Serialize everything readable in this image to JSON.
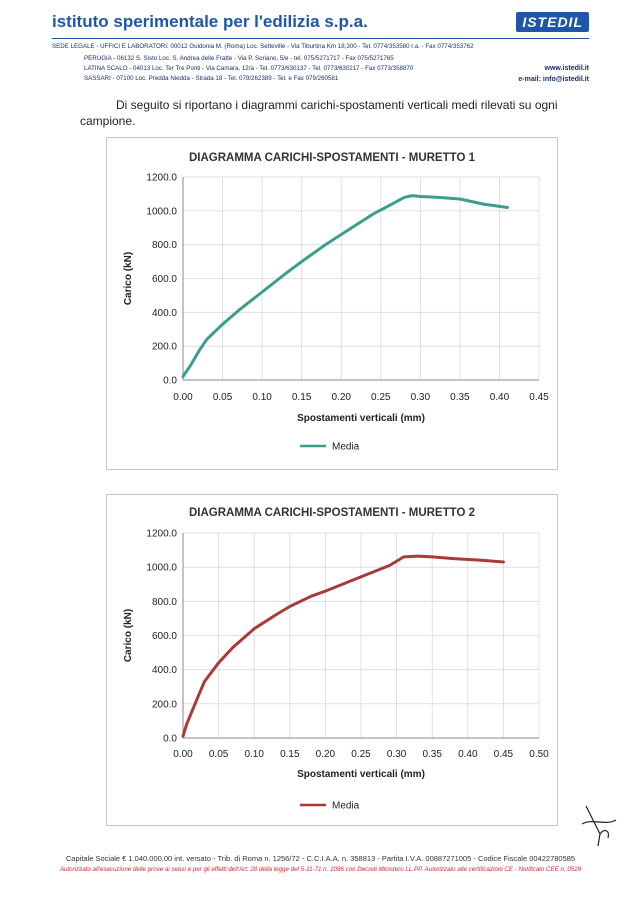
{
  "header": {
    "company": "istituto sperimentale per l'edilizia s.p.a.",
    "logo": "ISTEDIL",
    "line1": "SEDE LEGALE - UFFICI E LABORATORI: 00012 Guidonia M. (Roma) Loc. Setteville - Via Tiburtina Km 18,300 - Tel. 0774/353580 r.a. - Fax 0774/353762",
    "line2": "PERUGIA - 06132 S. Sisto Loc. S. Andrea delle Fratte - Via P. Soriano, 5/e - tel. 075/5271717 - Fax 075/5271765",
    "line3": "LATINA SCALO - 04013 Loc. Ter Tre Ponti - Via Camara, 12/a - Tel. 0773/630137 - Tel. 0773/630217 - Fax 0773/358870",
    "line4": "SASSARI - 07100 Loc. Predda Niedda - Strada 18 - Tel. 079/262389 - Tel. e Fax 079/260581",
    "website": "www.istedil.it",
    "email": "e-mail: info@istedil.it"
  },
  "intro_text": "Di seguito si riportano i diagrammi carichi-spostamenti verticali medi rilevati su ogni campione.",
  "chart_data": [
    {
      "type": "line",
      "title": "DIAGRAMMA CARICHI-SPOSTAMENTI - MURETTO 1",
      "xlabel": "Spostamenti verticali (mm)",
      "ylabel": "Carico (kN)",
      "xlim": [
        0,
        0.45
      ],
      "ylim": [
        0,
        1200
      ],
      "xticks": [
        "0.00",
        "0.05",
        "0.10",
        "0.15",
        "0.20",
        "0.25",
        "0.30",
        "0.35",
        "0.40",
        "0.45"
      ],
      "yticks": [
        "0.0",
        "200.0",
        "400.0",
        "600.0",
        "800.0",
        "1000.0",
        "1200.0"
      ],
      "legend_position": "bottom",
      "grid": true,
      "series": [
        {
          "name": "Media",
          "color": "#3a9e8d",
          "x": [
            0.0,
            0.01,
            0.02,
            0.03,
            0.05,
            0.07,
            0.1,
            0.13,
            0.15,
            0.18,
            0.2,
            0.22,
            0.24,
            0.26,
            0.28,
            0.29,
            0.3,
            0.32,
            0.35,
            0.38,
            0.41
          ],
          "y": [
            20,
            90,
            170,
            240,
            330,
            410,
            520,
            630,
            700,
            800,
            860,
            920,
            980,
            1030,
            1080,
            1090,
            1085,
            1080,
            1070,
            1040,
            1020
          ]
        }
      ]
    },
    {
      "type": "line",
      "title": "DIAGRAMMA CARICHI-SPOSTAMENTI - MURETTO 2",
      "xlabel": "Spostamenti verticali (mm)",
      "ylabel": "Carico (kN)",
      "xlim": [
        0,
        0.5
      ],
      "ylim": [
        0,
        1200
      ],
      "xticks": [
        "0.00",
        "0.05",
        "0.10",
        "0.15",
        "0.20",
        "0.25",
        "0.30",
        "0.35",
        "0.40",
        "0.45",
        "0.50"
      ],
      "yticks": [
        "0.0",
        "200.0",
        "400.0",
        "600.0",
        "800.0",
        "1000.0",
        "1200.0"
      ],
      "legend_position": "bottom",
      "grid": true,
      "series": [
        {
          "name": "Media",
          "color": "#a93a3a",
          "x": [
            0.0,
            0.005,
            0.01,
            0.02,
            0.03,
            0.05,
            0.07,
            0.1,
            0.13,
            0.15,
            0.18,
            0.2,
            0.23,
            0.26,
            0.29,
            0.31,
            0.33,
            0.35,
            0.38,
            0.42,
            0.45
          ],
          "y": [
            10,
            80,
            130,
            230,
            330,
            440,
            530,
            640,
            720,
            770,
            830,
            860,
            910,
            960,
            1010,
            1060,
            1065,
            1060,
            1050,
            1040,
            1030
          ]
        }
      ]
    }
  ],
  "footer": {
    "line1": "Capitale Sociale € 1.040.000,00 int. versato - Trib. di Roma n. 1256/72 - C.C.I.A.A. n. 358813 - Partita I.V.A. 00887271005 - Codice Fiscale 00422780585",
    "line2": "Autorizzato all'esecuzione delle prove ai sensi e per gli effetti dell'Art. 20 della legge del 5-11-71 n. 1086 con Decreti Ministero LL.PP. Autorizzato alle certificazioni CE - Notificato CEE n. 0529"
  }
}
